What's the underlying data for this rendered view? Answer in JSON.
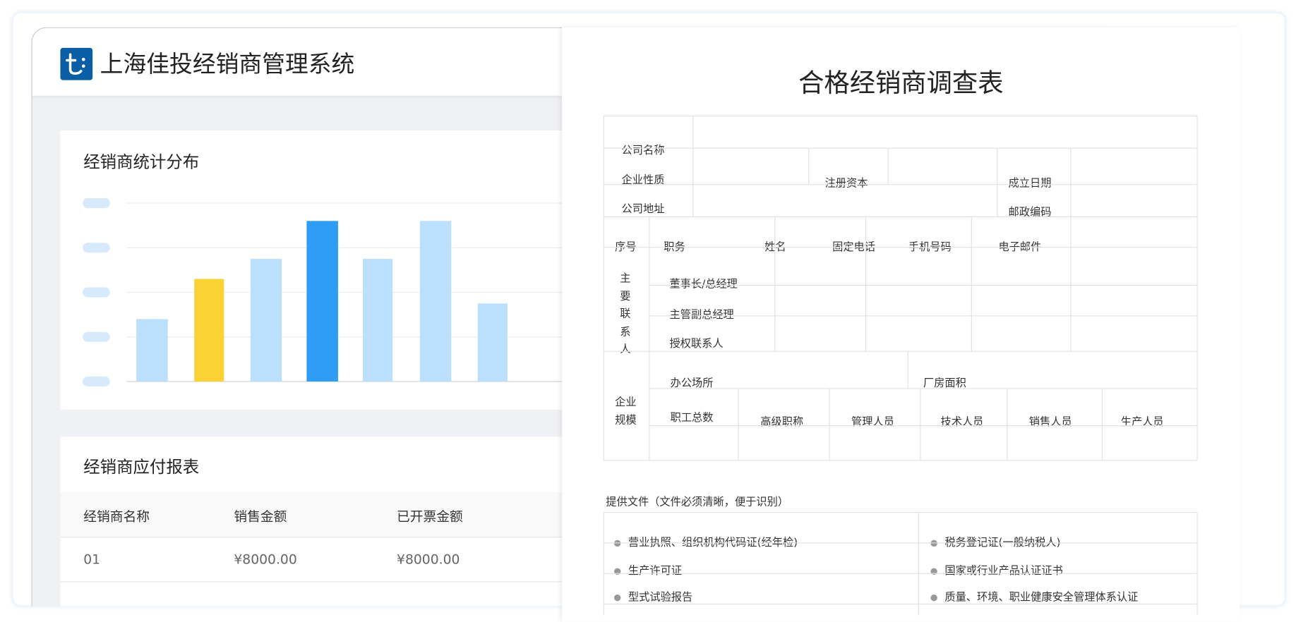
{
  "app": {
    "title": "上海佳投经销商管理系统",
    "logo_text": "t:",
    "accent": "#0a5ea6"
  },
  "chart_card": {
    "title": "经销商统计分布"
  },
  "chart_data": {
    "type": "bar",
    "title": "",
    "xlabel": "",
    "ylabel": "",
    "ylim": [
      0,
      4
    ],
    "grid": true,
    "categories": [
      "",
      "",
      "",
      "",
      "",
      "",
      ""
    ],
    "values": [
      1.4,
      2.3,
      2.75,
      3.6,
      2.75,
      3.6,
      1.75
    ],
    "colors": [
      "#bbe0fd",
      "#fad234",
      "#bbe0fd",
      "#2f9cf6",
      "#bbe0fd",
      "#bbe0fd",
      "#bbe0fd"
    ],
    "y_tick_placeholder_color": "#d6eafc"
  },
  "table_card": {
    "title": "经销商应付报表",
    "columns": [
      "经销商名称",
      "销售金额",
      "已开票金额"
    ],
    "rows": [
      [
        "01",
        "¥8000.00",
        "¥8000.00"
      ]
    ]
  },
  "form": {
    "title": "合格经销商调查表",
    "company_name": "公司名称",
    "company_type": "企业性质",
    "registered_capital": "注册资本",
    "founded_date": "成立日期",
    "company_address": "公司地址",
    "postal_code": "邮政编码",
    "contact_headers": [
      "序号",
      "职务",
      "姓名",
      "固定电话",
      "手机号码",
      "电子邮件"
    ],
    "contact_group": [
      "主",
      "要",
      "联",
      "系",
      "人"
    ],
    "contact_roles": [
      "董事长/总经理",
      "主管副总经理",
      "授权联系人"
    ],
    "scale_group": [
      "企业",
      "规模"
    ],
    "office": "办公场所",
    "factory_area": "厂房面积",
    "staff_headers": [
      "职工总数",
      "高级职称",
      "管理人员",
      "技术人员",
      "销售人员",
      "生产人员"
    ],
    "docs_title": "提供文件（文件必须清晰，便于识别）",
    "docs": [
      [
        "营业执照、组织机构代码证(经年检)",
        "税务登记证(一般纳税人)"
      ],
      [
        "生产许可证",
        "国家或行业产品认证证书"
      ],
      [
        "型式试验报告",
        "质量、环境、职业健康安全管理体系认证"
      ]
    ]
  }
}
